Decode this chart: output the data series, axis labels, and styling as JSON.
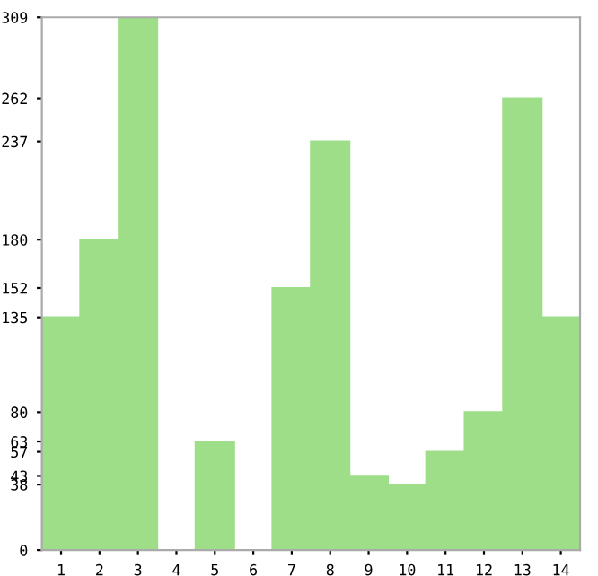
{
  "chart_data": {
    "type": "bar",
    "categories": [
      "1",
      "2",
      "3",
      "4",
      "5",
      "6",
      "7",
      "8",
      "9",
      "10",
      "11",
      "12",
      "13",
      "14"
    ],
    "values": [
      135,
      180,
      309,
      0,
      63,
      0,
      152,
      237,
      43,
      38,
      57,
      80,
      262,
      135
    ],
    "color": "#9ede88",
    "ylim": [
      0,
      309
    ],
    "yticks": [
      0,
      38,
      43,
      57,
      63,
      80,
      135,
      152,
      180,
      237,
      262,
      309
    ],
    "grid": false
  }
}
